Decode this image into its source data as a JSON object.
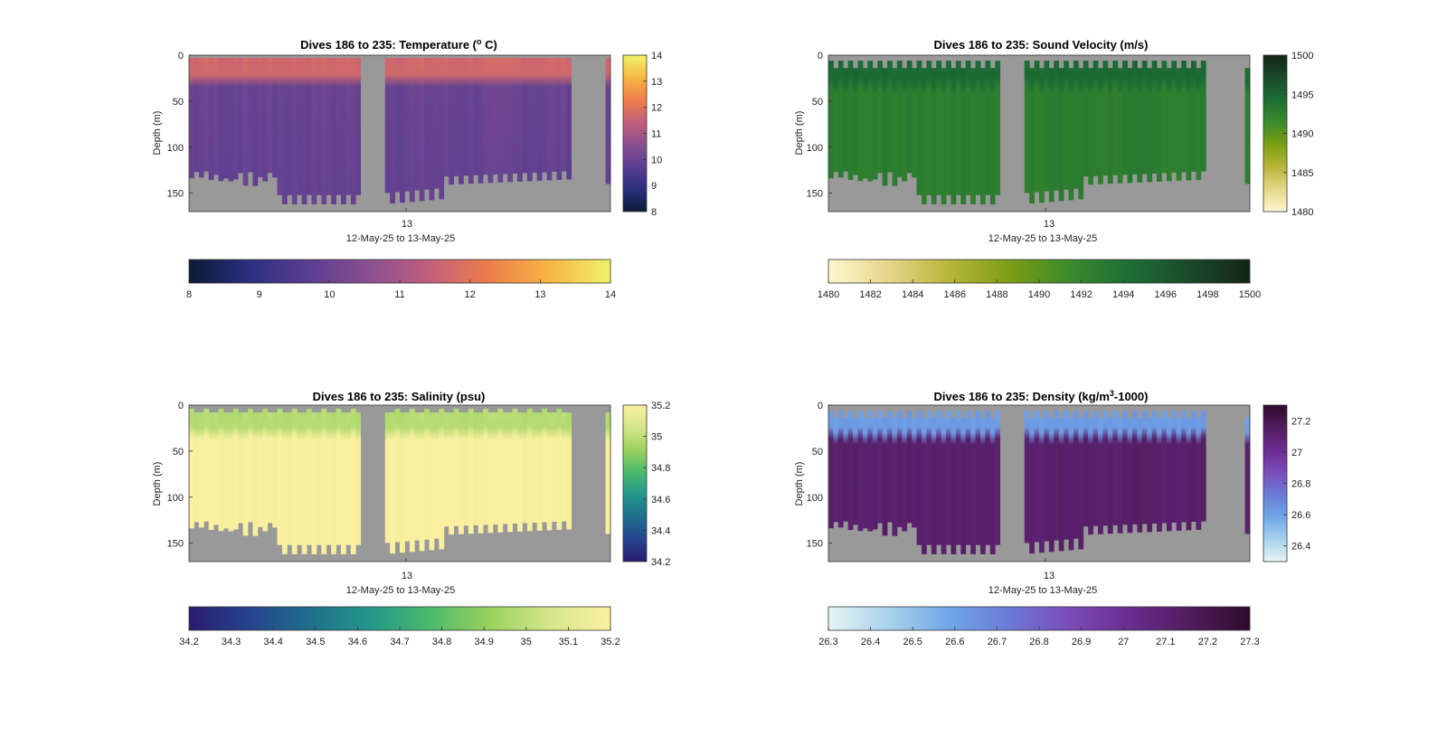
{
  "figure": {
    "background": "#ffffff",
    "nodata_color": "#999999"
  },
  "chart_data": [
    {
      "type": "heatmap",
      "id": "temperature",
      "title_main": "Dives 186 to 235: Temperature (",
      "title_sup": "o",
      "title_end": " C)",
      "ylabel": "Depth (m)",
      "xlabel": "12-May-25 to 13-May-25",
      "xtick_labels": [
        "13"
      ],
      "ytick_labels": [
        "0",
        "50",
        "100",
        "150"
      ],
      "ylim": [
        0,
        170
      ],
      "clim": [
        8,
        14
      ],
      "vcb_ticks": [
        "14",
        "13",
        "12",
        "11",
        "10",
        "9",
        "8"
      ],
      "hcb_ticks": [
        "8",
        "9",
        "10",
        "11",
        "12",
        "13",
        "14"
      ],
      "colormap": [
        "#0b1a36",
        "#2b2f7e",
        "#5a3e91",
        "#8a4f90",
        "#c25f7c",
        "#ef7e4a",
        "#f7b645",
        "#f0f36a"
      ],
      "surface_value": 11.7,
      "deep_value": 10.0
    },
    {
      "type": "heatmap",
      "id": "sound-velocity",
      "title_main": "Dives 186 to 235: Sound Velocity (m/s)",
      "title_sup": "",
      "title_end": "",
      "ylabel": "Depth (m)",
      "xlabel": "12-May-25 to 13-May-25",
      "xtick_labels": [
        "13"
      ],
      "ytick_labels": [
        "0",
        "50",
        "100",
        "150"
      ],
      "ylim": [
        0,
        170
      ],
      "clim": [
        1480,
        1500
      ],
      "vcb_ticks": [
        "1500",
        "1495",
        "1490",
        "1485",
        "1480"
      ],
      "hcb_ticks": [
        "1480",
        "1482",
        "1484",
        "1486",
        "1488",
        "1490",
        "1492",
        "1494",
        "1496",
        "1498",
        "1500"
      ],
      "colormap": [
        "#fdf7d0",
        "#e6d68a",
        "#b8b53a",
        "#7c9e14",
        "#3c8a2c",
        "#1c6e35",
        "#1a4a2a",
        "#142417"
      ],
      "surface_value": 1494.6,
      "deep_value": 1492.8
    },
    {
      "type": "heatmap",
      "id": "salinity",
      "title_main": "Dives 186 to 235: Salinity (psu)",
      "title_sup": "",
      "title_end": "",
      "ylabel": "Depth (m)",
      "xlabel": "12-May-25 to 13-May-25",
      "xtick_labels": [
        "13"
      ],
      "ytick_labels": [
        "0",
        "50",
        "100",
        "150"
      ],
      "ylim": [
        0,
        170
      ],
      "clim": [
        34.2,
        35.2
      ],
      "vcb_ticks": [
        "35.2",
        "35",
        "34.8",
        "34.6",
        "34.4",
        "34.2"
      ],
      "hcb_ticks": [
        "34.2",
        "34.3",
        "34.4",
        "34.5",
        "34.6",
        "34.7",
        "34.8",
        "34.9",
        "35",
        "35.1",
        "35.2"
      ],
      "colormap": [
        "#2a1a6e",
        "#26448f",
        "#1f6e8c",
        "#23968a",
        "#4cba6d",
        "#9ad25e",
        "#d6e68a",
        "#fbf0a0"
      ],
      "surface_value": 34.98,
      "deep_value": 35.2
    },
    {
      "type": "heatmap",
      "id": "density",
      "title_main": "Dives 186 to 235: Density (kg/m",
      "title_sup": "3",
      "title_end": "-1000)",
      "ylabel": "Depth (m)",
      "xlabel": "12-May-25 to 13-May-25",
      "xtick_labels": [
        "13"
      ],
      "ytick_labels": [
        "0",
        "50",
        "100",
        "150"
      ],
      "ylim": [
        0,
        170
      ],
      "clim": [
        26.3,
        27.3
      ],
      "vcb_ticks": [
        "27.2",
        "27",
        "26.8",
        "26.6",
        "26.4"
      ],
      "hcb_ticks": [
        "26.3",
        "26.4",
        "26.5",
        "26.6",
        "26.7",
        "26.8",
        "26.9",
        "27",
        "27.1",
        "27.2",
        "27.3"
      ],
      "colormap": [
        "#e8f3f4",
        "#a8d2ec",
        "#6fa7e8",
        "#6c7ad6",
        "#7a4cb8",
        "#6a2c90",
        "#521c5e",
        "#2e0a2a"
      ],
      "surface_value": 26.62,
      "deep_value": 27.12
    }
  ]
}
